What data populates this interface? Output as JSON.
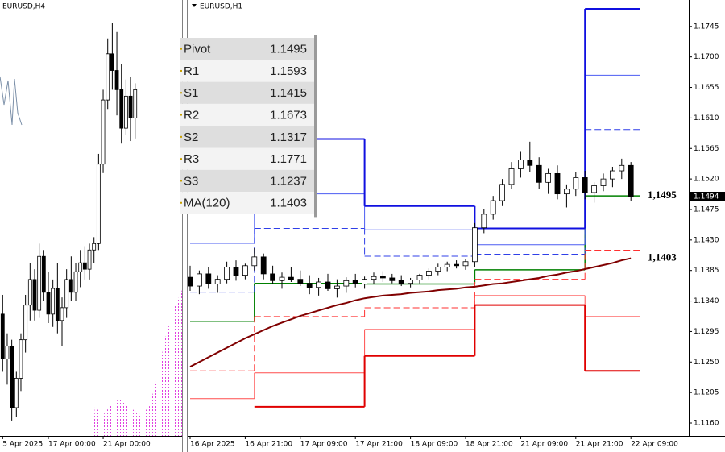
{
  "chart_data": [
    {
      "type": "candlestick",
      "title": "EURUSD,H4",
      "categories": [
        "5 Apr 2025",
        null,
        null,
        null,
        null,
        null,
        null,
        null,
        null,
        null,
        "17 Apr 00:00",
        null,
        null,
        null,
        null,
        null,
        null,
        null,
        null,
        null,
        null,
        null,
        "21 Apr 00:00",
        null,
        null,
        null,
        null,
        null,
        null,
        null
      ],
      "open": [
        1.1345,
        1.131,
        1.132,
        1.1272,
        1.1295,
        1.1325,
        1.1352,
        1.1372,
        1.1348,
        1.139,
        1.1362,
        1.1345,
        1.1365,
        1.134,
        1.135,
        1.1372,
        1.1362,
        1.1378,
        1.1385,
        1.138,
        1.1395,
        1.14,
        1.1462,
        1.1512,
        1.1548,
        1.1535,
        1.152,
        1.149,
        1.1515,
        1.1498
      ],
      "high": [
        1.136,
        1.133,
        1.1325,
        1.13,
        1.133,
        1.136,
        1.1385,
        1.138,
        1.14,
        1.1395,
        1.1378,
        1.1372,
        1.1385,
        1.1358,
        1.138,
        1.139,
        1.1385,
        1.1395,
        1.1398,
        1.14,
        1.1405,
        1.147,
        1.152,
        1.156,
        1.1572,
        1.1565,
        1.154,
        1.1528,
        1.153,
        1.1525
      ],
      "low": [
        1.13,
        1.129,
        1.1262,
        1.1265,
        1.1285,
        1.1315,
        1.134,
        1.134,
        1.1342,
        1.1355,
        1.1338,
        1.1335,
        1.133,
        1.132,
        1.1342,
        1.1355,
        1.1355,
        1.1366,
        1.1372,
        1.1372,
        1.1385,
        1.1395,
        1.1455,
        1.1505,
        1.152,
        1.15,
        1.1478,
        1.1485,
        1.148,
        1.1482
      ],
      "close": [
        1.131,
        1.132,
        1.1272,
        1.1295,
        1.1325,
        1.1352,
        1.1372,
        1.1348,
        1.139,
        1.1362,
        1.1345,
        1.1365,
        1.134,
        1.135,
        1.1372,
        1.1362,
        1.1378,
        1.1385,
        1.138,
        1.1395,
        1.14,
        1.1462,
        1.1512,
        1.1548,
        1.1535,
        1.152,
        1.149,
        1.1515,
        1.1498,
        1.152
      ],
      "bull_color": "#ffffff",
      "bear_color": "#000000",
      "ylim": [
        1.125,
        1.159
      ]
    },
    {
      "type": "candlestick",
      "title": "EURUSD,H1",
      "categories": [
        "16 Apr 2025",
        null,
        null,
        null,
        null,
        null,
        "16 Apr 21:00",
        null,
        null,
        null,
        null,
        null,
        "17 Apr 09:00",
        null,
        null,
        null,
        null,
        null,
        "17 Apr 21:00",
        null,
        null,
        null,
        null,
        null,
        "18 Apr 09:00",
        null,
        null,
        null,
        null,
        null,
        "18 Apr 21:00",
        null,
        null,
        null,
        null,
        null,
        "21 Apr 09:00",
        null,
        null,
        null,
        null,
        null,
        "21 Apr 21:00",
        null,
        null,
        null,
        null,
        null,
        "22 Apr 09:00"
      ],
      "open": [
        1.1375,
        1.1362,
        1.138,
        1.1365,
        1.1372,
        1.139,
        1.1378,
        1.1392,
        1.1405,
        1.138,
        1.137,
        1.1375,
        1.1372,
        1.1366,
        1.136,
        1.1368,
        1.1358,
        1.1362,
        1.137,
        1.1365,
        1.1372,
        1.1376,
        1.1374,
        1.137,
        1.1366,
        1.1371,
        1.1378,
        1.1384,
        1.139,
        1.1394,
        1.1392,
        1.1398,
        1.1448,
        1.1468,
        1.1488,
        1.1512,
        1.1535,
        1.1548,
        1.154,
        1.1515,
        1.1528,
        1.1498,
        1.1505,
        1.1522,
        1.15,
        1.151,
        1.152,
        1.1532,
        1.154
      ],
      "high": [
        1.1392,
        1.1385,
        1.139,
        1.1378,
        1.1398,
        1.14,
        1.1395,
        1.1418,
        1.141,
        1.1392,
        1.1382,
        1.139,
        1.1385,
        1.1378,
        1.1374,
        1.138,
        1.1372,
        1.1375,
        1.138,
        1.1376,
        1.1382,
        1.1384,
        1.138,
        1.1378,
        1.1374,
        1.138,
        1.1388,
        1.1395,
        1.1398,
        1.14,
        1.1402,
        1.1455,
        1.1475,
        1.1495,
        1.152,
        1.1545,
        1.156,
        1.1575,
        1.1552,
        1.1535,
        1.154,
        1.1512,
        1.153,
        1.1532,
        1.1515,
        1.1528,
        1.1538,
        1.155,
        1.1545
      ],
      "low": [
        1.1355,
        1.135,
        1.1358,
        1.1352,
        1.1366,
        1.137,
        1.1372,
        1.1385,
        1.1372,
        1.1365,
        1.1358,
        1.1368,
        1.1362,
        1.135,
        1.1348,
        1.1355,
        1.1345,
        1.1352,
        1.136,
        1.1358,
        1.1365,
        1.1368,
        1.1366,
        1.1362,
        1.136,
        1.1366,
        1.1372,
        1.1378,
        1.1384,
        1.1388,
        1.1386,
        1.139,
        1.144,
        1.146,
        1.148,
        1.1505,
        1.1522,
        1.153,
        1.1505,
        1.1498,
        1.149,
        1.1478,
        1.1495,
        1.149,
        1.1485,
        1.1502,
        1.1508,
        1.152,
        1.1488
      ],
      "close": [
        1.1362,
        1.138,
        1.1365,
        1.1372,
        1.139,
        1.1378,
        1.1392,
        1.1405,
        1.138,
        1.137,
        1.1375,
        1.1372,
        1.1366,
        1.136,
        1.1368,
        1.1358,
        1.1362,
        1.137,
        1.1365,
        1.1372,
        1.1376,
        1.1374,
        1.137,
        1.1366,
        1.1371,
        1.1378,
        1.1384,
        1.139,
        1.1394,
        1.1392,
        1.1398,
        1.1448,
        1.1468,
        1.1488,
        1.1512,
        1.1535,
        1.1548,
        1.154,
        1.1515,
        1.1528,
        1.1498,
        1.1505,
        1.1522,
        1.15,
        1.151,
        1.152,
        1.1532,
        1.154,
        1.1494
      ],
      "bull_color": "#ffffff",
      "bear_color": "#000000",
      "ylim": [
        1.1141,
        1.1784
      ],
      "yticks": [
        1.1745,
        {
          "value": 1.17,
          "label": "1.1700"
        },
        1.1655,
        {
          "value": 1.161,
          "label": "1.1610"
        },
        1.1565,
        {
          "value": 1.152,
          "label": "1.1520"
        },
        1.1475,
        {
          "value": 1.143,
          "label": "1.1430"
        },
        1.1385,
        {
          "value": 1.134,
          "label": "1.1340"
        },
        1.1295,
        {
          "value": 1.125,
          "label": "1.1250"
        },
        1.1205,
        {
          "value": 1.116,
          "label": "1.1160"
        }
      ],
      "level_starts": [
        0,
        7,
        19,
        31,
        43
      ],
      "levels": [
        {
          "name": "Pivot",
          "color": "#008000",
          "width": 1.5,
          "dashed": false,
          "values": [
            1.131,
            1.1366,
            1.1365,
            1.1386,
            1.1495
          ]
        },
        {
          "name": "R1",
          "color": "#2f3fe8",
          "width": 1,
          "dashed": true,
          "values": [
            1.1353,
            1.1447,
            1.1406,
            1.1409,
            1.1593
          ]
        },
        {
          "name": "S1",
          "color": "#ff3030",
          "width": 1,
          "dashed": true,
          "values": [
            1.1237,
            1.1317,
            1.133,
            1.1372,
            1.1415
          ]
        },
        {
          "name": "R2",
          "color": "#4b5cf2",
          "width": 1,
          "dashed": false,
          "values": [
            1.1425,
            1.1498,
            1.1445,
            1.1423,
            1.1673
          ]
        },
        {
          "name": "S2",
          "color": "#ff4d4d",
          "width": 1,
          "dashed": false,
          "values": [
            1.1196,
            1.1234,
            1.1298,
            1.1348,
            1.1317
          ]
        },
        {
          "name": "R3",
          "color": "#1010e0",
          "width": 2,
          "dashed": false,
          "values": [
            null,
            1.1579,
            1.148,
            1.1447,
            1.1771
          ]
        },
        {
          "name": "S3",
          "color": "#e00000",
          "width": 2,
          "dashed": false,
          "values": [
            null,
            1.1184,
            1.1259,
            1.1334,
            1.1237
          ]
        }
      ],
      "ma": {
        "name": "MA(120)",
        "color": "#800000",
        "width": 2,
        "values": [
          1.1243,
          1.125,
          1.1257,
          1.1264,
          1.1271,
          1.1278,
          1.1285,
          1.1291,
          1.1297,
          1.1303,
          1.1308,
          1.1313,
          1.1318,
          1.1322,
          1.1326,
          1.133,
          1.1334,
          1.1337,
          1.1341,
          1.1344,
          1.1346,
          1.1348,
          1.1349,
          1.135,
          1.1352,
          1.1353,
          1.1354,
          1.1356,
          1.1357,
          1.1358,
          1.136,
          1.1361,
          1.1363,
          1.1365,
          1.1366,
          1.1368,
          1.137,
          1.1372,
          1.1374,
          1.1377,
          1.1379,
          1.1382,
          1.1384,
          1.1387,
          1.139,
          1.1393,
          1.1396,
          1.14,
          1.1403
        ]
      },
      "annotations": [
        {
          "value": 1.1495,
          "label": "1,1495"
        },
        {
          "value": 1.1403,
          "label": "1,1403"
        }
      ],
      "last_price": 1.1494
    }
  ]
}
